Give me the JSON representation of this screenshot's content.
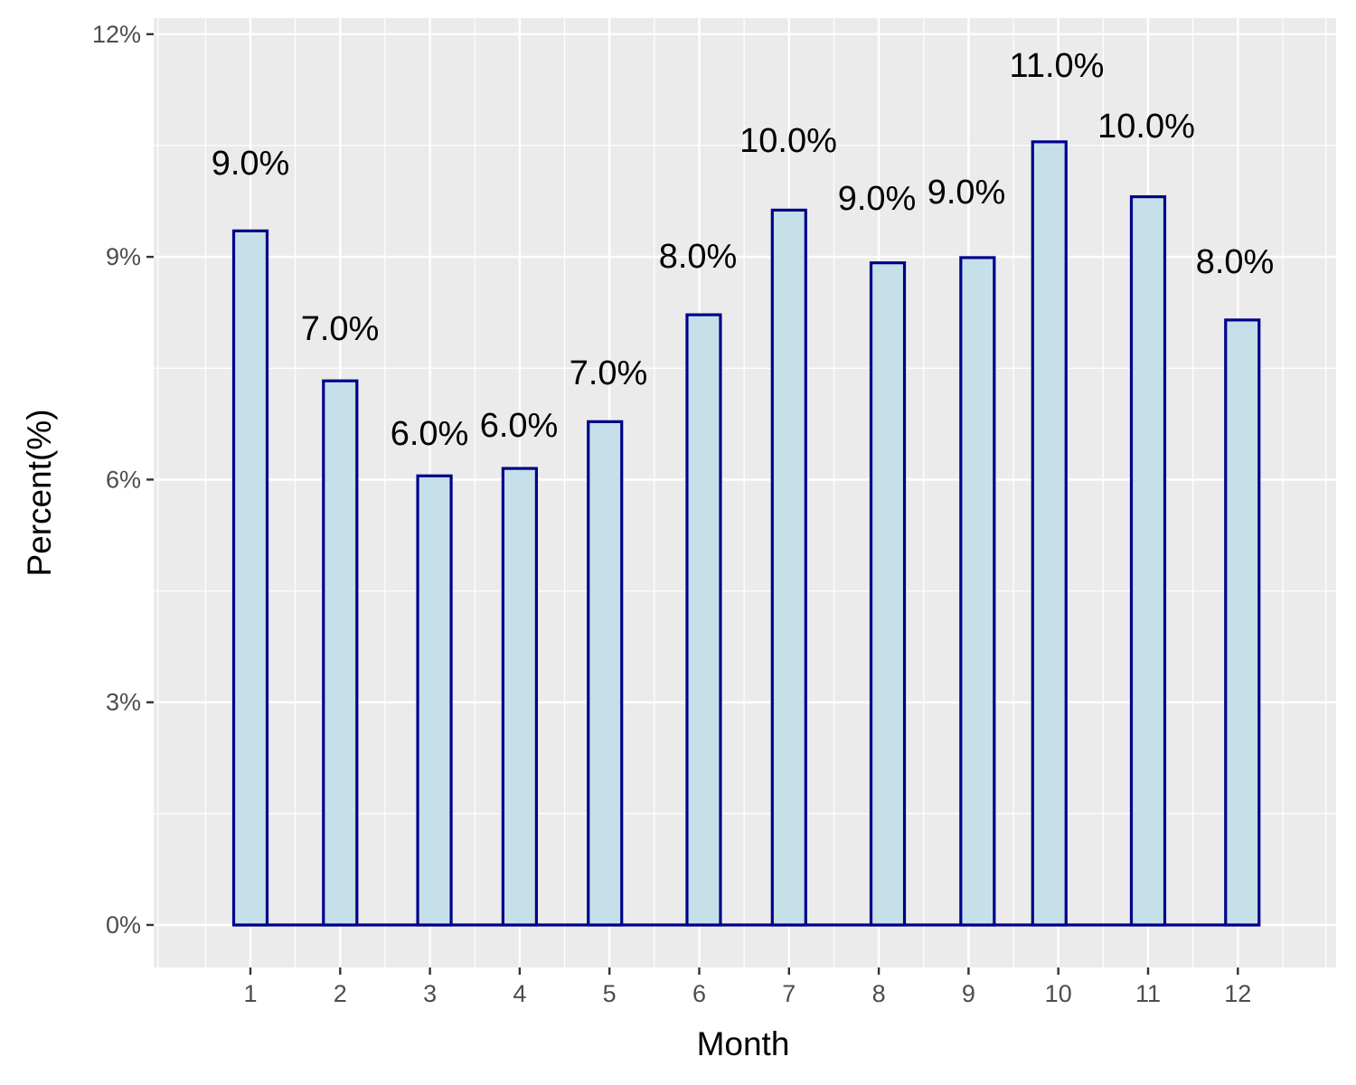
{
  "chart_data": {
    "type": "bar",
    "title": "",
    "xlabel": "Month",
    "ylabel": "Percent(%)",
    "x_ticks": [
      "1",
      "2",
      "3",
      "4",
      "5",
      "6",
      "7",
      "8",
      "9",
      "10",
      "11",
      "12"
    ],
    "y_ticks": [
      "0%",
      "3%",
      "6%",
      "9%",
      "12%"
    ],
    "ylim": [
      -0.55,
      12.2
    ],
    "xlim": [
      0,
      13
    ],
    "grid": true,
    "legend": "none",
    "colors": {
      "panel": "#ebebeb",
      "grid": "#ffffff",
      "bar_fill": "#c5e0e9",
      "bar_stroke": "#00008b"
    },
    "bars": [
      {
        "month": 1,
        "value": 9.35,
        "label": "9.0%"
      },
      {
        "month": 2,
        "value": 7.33,
        "label": "7.0%"
      },
      {
        "month": 3.05,
        "value": 6.05,
        "label": "6.0%"
      },
      {
        "month": 4,
        "value": 6.15,
        "label": "6.0%"
      },
      {
        "month": 4.95,
        "value": 6.78,
        "label": "7.0%"
      },
      {
        "month": 6.05,
        "value": 8.22,
        "label": "8.0%"
      },
      {
        "month": 7,
        "value": 9.63,
        "label": "10.0%"
      },
      {
        "month": 8.1,
        "value": 8.92,
        "label": "9.0%"
      },
      {
        "month": 9.1,
        "value": 8.99,
        "label": "9.0%"
      },
      {
        "month": 9.9,
        "value": 10.55,
        "label": "11.0%"
      },
      {
        "month": 11,
        "value": 9.81,
        "label": "10.0%"
      },
      {
        "month": 12.05,
        "value": 8.15,
        "label": "8.0%"
      }
    ]
  }
}
